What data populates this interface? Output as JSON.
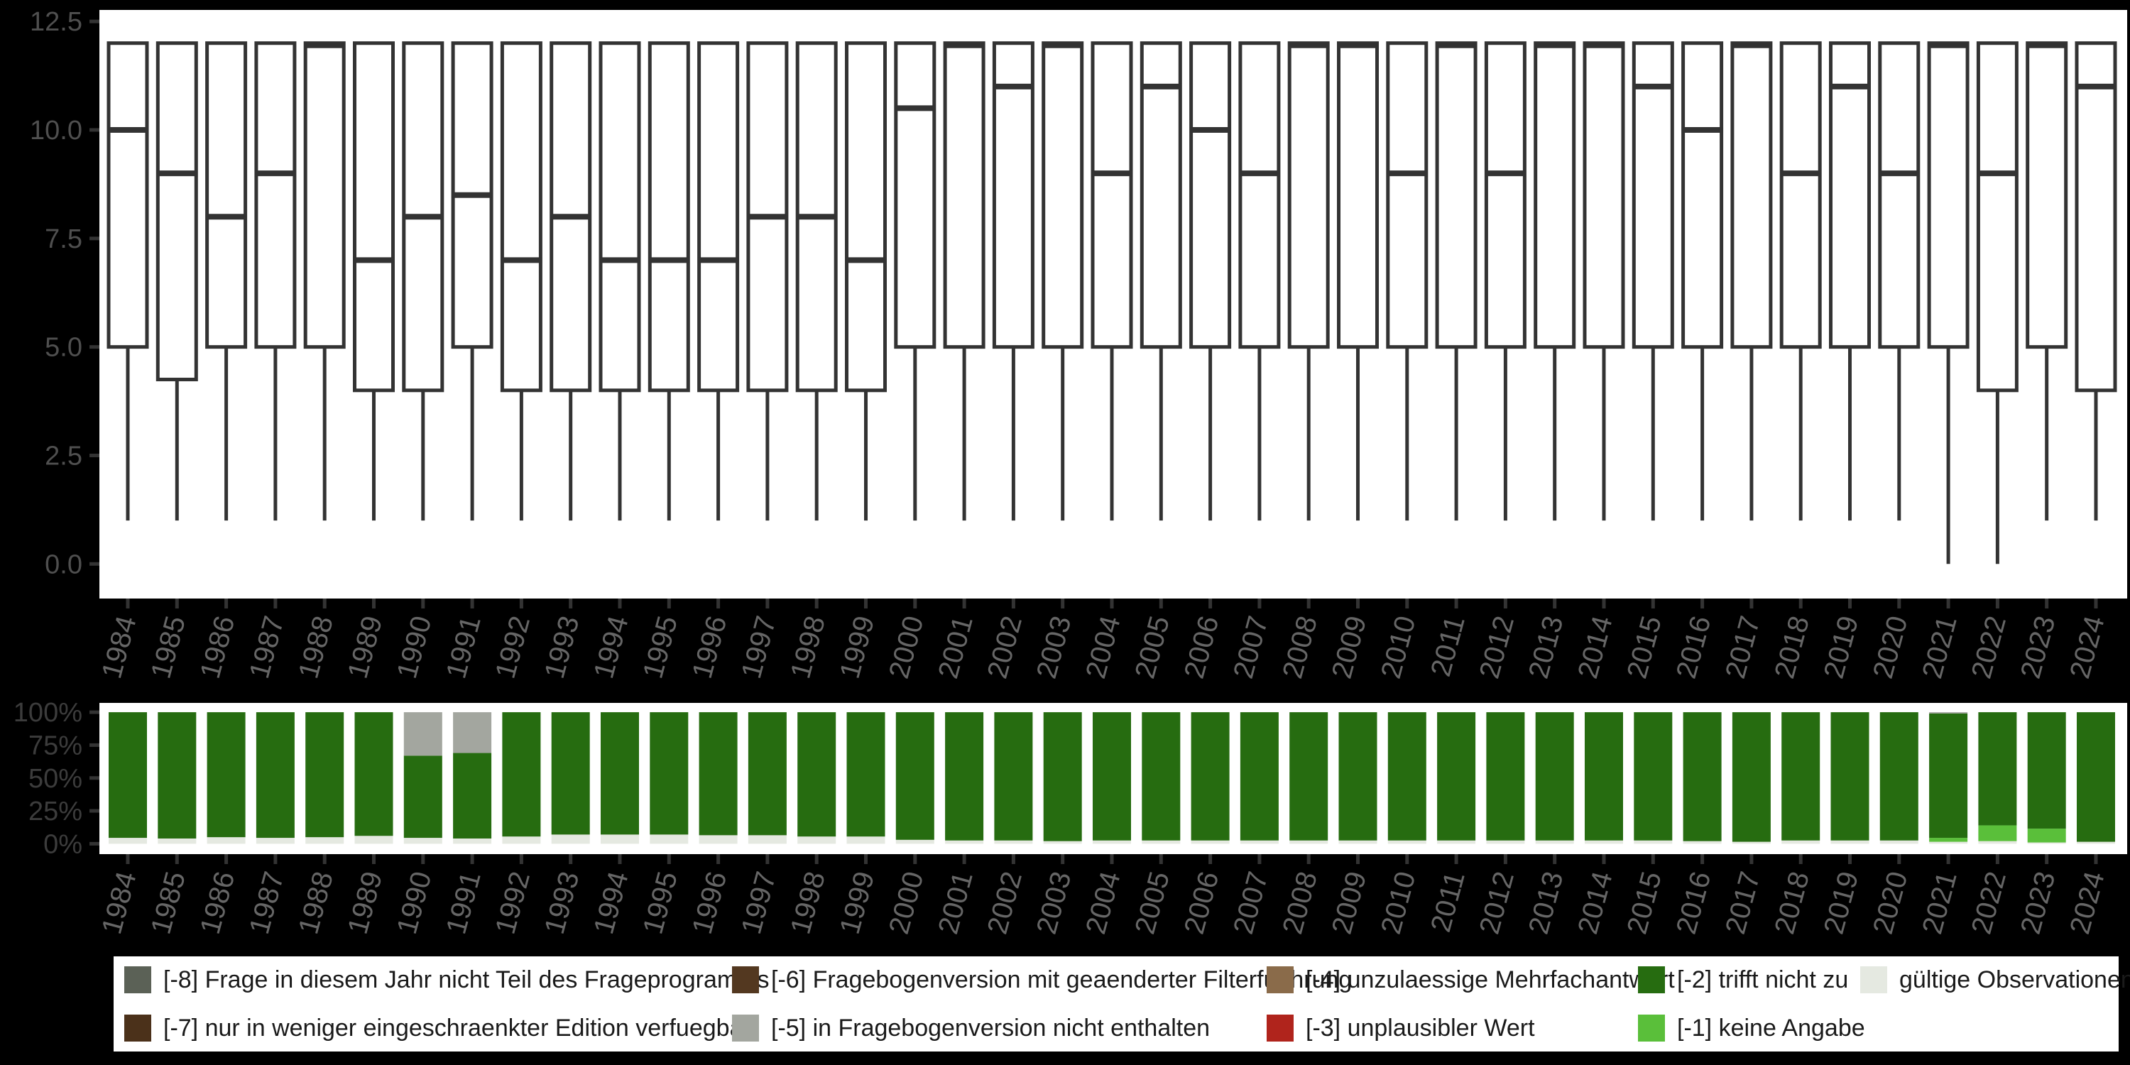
{
  "page": {
    "background": "#000000",
    "panel_background": "#ffffff",
    "box_stroke": "#333333",
    "tick_color": "#333333",
    "axis_label_color_top": "#4f4f4f",
    "axis_label_color_bottom": "#3c3c3c",
    "year_label_color": "#666666"
  },
  "chart_data": [
    {
      "type": "boxplot",
      "title": "",
      "xlabel": "",
      "ylabel": "",
      "ylim": [
        -0.8,
        12.77
      ],
      "yticks": [
        12.5,
        10.0,
        7.5,
        5.0,
        2.5,
        0.0
      ],
      "ytick_labels": [
        "12.5",
        "10.0",
        "7.5",
        "5.0",
        "2.5",
        "0.0"
      ],
      "grid": false,
      "categories": [
        1984,
        1985,
        1986,
        1987,
        1988,
        1989,
        1990,
        1991,
        1992,
        1993,
        1994,
        1995,
        1996,
        1997,
        1998,
        1999,
        2000,
        2001,
        2002,
        2003,
        2004,
        2005,
        2006,
        2007,
        2008,
        2009,
        2010,
        2011,
        2012,
        2013,
        2014,
        2015,
        2016,
        2017,
        2018,
        2019,
        2020,
        2021,
        2022,
        2023,
        2024
      ],
      "median": [
        10,
        9,
        8,
        9,
        12,
        7,
        8,
        8.5,
        7,
        8,
        7,
        7,
        7,
        8,
        8,
        7,
        10.5,
        12,
        11,
        12,
        9,
        11,
        10,
        9,
        12,
        12,
        9,
        12,
        9,
        12,
        12,
        11,
        10,
        12,
        9,
        11,
        9,
        12,
        9,
        12,
        11
      ],
      "q1": [
        5,
        4.25,
        5,
        5,
        5,
        4,
        4,
        5,
        4,
        4,
        4,
        4,
        4,
        4,
        4,
        4,
        5,
        5,
        5,
        5,
        5,
        5,
        5,
        5,
        5,
        5,
        5,
        5,
        5,
        5,
        5,
        5,
        5,
        5,
        5,
        5,
        5,
        5,
        4,
        5,
        4
      ],
      "q3": [
        12,
        12,
        12,
        12,
        12,
        12,
        12,
        12,
        12,
        12,
        12,
        12,
        12,
        12,
        12,
        12,
        12,
        12,
        12,
        12,
        12,
        12,
        12,
        12,
        12,
        12,
        12,
        12,
        12,
        12,
        12,
        12,
        12,
        12,
        12,
        12,
        12,
        12,
        12,
        12,
        12
      ],
      "whisker_low": [
        1,
        1,
        1,
        1,
        1,
        1,
        1,
        1,
        1,
        1,
        1,
        1,
        1,
        1,
        1,
        1,
        1,
        1,
        1,
        1,
        1,
        1,
        1,
        1,
        1,
        1,
        1,
        1,
        1,
        1,
        1,
        1,
        1,
        1,
        1,
        1,
        1,
        0,
        0,
        1,
        1
      ],
      "whisker_high": [
        12,
        12,
        12,
        12,
        12,
        12,
        12,
        12,
        12,
        12,
        12,
        12,
        12,
        12,
        12,
        12,
        12,
        12,
        12,
        12,
        12,
        12,
        12,
        12,
        12,
        12,
        12,
        12,
        12,
        12,
        12,
        12,
        12,
        12,
        12,
        12,
        12,
        12,
        12,
        12,
        12
      ]
    },
    {
      "type": "bar",
      "subtype": "stacked-percent",
      "title": "",
      "xlabel": "",
      "ylabel": "",
      "yticks": [
        0,
        25,
        50,
        75,
        100
      ],
      "ytick_labels": [
        "0%",
        "25%",
        "50%",
        "75%",
        "100%"
      ],
      "categories": [
        1984,
        1985,
        1986,
        1987,
        1988,
        1989,
        1990,
        1991,
        1992,
        1993,
        1994,
        1995,
        1996,
        1997,
        1998,
        1999,
        2000,
        2001,
        2002,
        2003,
        2004,
        2005,
        2006,
        2007,
        2008,
        2009,
        2010,
        2011,
        2012,
        2013,
        2014,
        2015,
        2016,
        2017,
        2018,
        2019,
        2020,
        2021,
        2022,
        2023,
        2024
      ],
      "series": [
        {
          "name": "gueltige Observationen",
          "color": "#e5e9e1",
          "values": [
            4.5,
            4,
            5,
            4.5,
            5,
            6,
            4.5,
            4,
            5.5,
            7,
            7,
            7,
            6.5,
            6.5,
            5.5,
            5.5,
            3,
            2.5,
            2.5,
            2,
            2.5,
            2.5,
            2.5,
            2.5,
            2.5,
            2.5,
            2.5,
            2.5,
            2.5,
            2.5,
            2.5,
            2.5,
            2,
            1.5,
            2.5,
            2.5,
            2.5,
            1.5,
            2,
            1,
            1.5
          ]
        },
        {
          "name": "[-1] keine Angabe",
          "color": "#5abf3a",
          "values": [
            0,
            0,
            0,
            0,
            0,
            0,
            0,
            0,
            0,
            0,
            0,
            0,
            0,
            0,
            0,
            0,
            0,
            0,
            0,
            0,
            0,
            0,
            0,
            0,
            0,
            0,
            0,
            0,
            0,
            0,
            0,
            0,
            0,
            0,
            0,
            0,
            0,
            3,
            12,
            10.5,
            0
          ]
        },
        {
          "name": "[-2] trifft nicht zu",
          "color": "#266c10",
          "values": [
            95.5,
            96,
            95,
            95.5,
            95,
            94,
            62.5,
            65,
            94.5,
            93,
            93,
            93,
            93.5,
            93.5,
            94.5,
            94.5,
            97,
            97.5,
            97.5,
            98,
            97.5,
            97.5,
            97.5,
            97.5,
            97.5,
            97.5,
            97.5,
            97.5,
            97.5,
            97.5,
            97.5,
            97.5,
            98,
            98.5,
            97.5,
            97.5,
            97.5,
            94.5,
            86,
            88.5,
            98.5
          ]
        },
        {
          "name": "[-5] in Fragebogenversion nicht enthalten",
          "color": "#a3a69f",
          "values": [
            0,
            0,
            0,
            0,
            0,
            0,
            33,
            31,
            0,
            0,
            0,
            0,
            0,
            0,
            0,
            0,
            0,
            0,
            0,
            0,
            0,
            0,
            0,
            0,
            0,
            0,
            0,
            0,
            0,
            0,
            0,
            0,
            0,
            0,
            0,
            0,
            0,
            1,
            0,
            0,
            0
          ]
        }
      ]
    }
  ],
  "legend": {
    "items": [
      {
        "code": "-8",
        "label": "[-8] Frage in diesem Jahr nicht Teil des Frageprogramms",
        "color": "#5b6156"
      },
      {
        "code": "-7",
        "label": "[-7] nur in weniger eingeschraenkter Edition verfuegbar",
        "color": "#4b311a"
      },
      {
        "code": "-6",
        "label": "[-6] Fragebogenversion mit geaenderter Filterfuehrung",
        "color": "#533820"
      },
      {
        "code": "-5",
        "label": "[-5] in Fragebogenversion nicht enthalten",
        "color": "#a3a69f"
      },
      {
        "code": "-4",
        "label": "[-4] unzulaessige Mehrfachantwort",
        "color": "#8a6b4a"
      },
      {
        "code": "-3",
        "label": "[-3] unplausibler Wert",
        "color": "#b0241c"
      },
      {
        "code": "-2",
        "label": "[-2] trifft nicht zu",
        "color": "#266c10"
      },
      {
        "code": "-1",
        "label": "[-1] keine Angabe",
        "color": "#5abf3a"
      },
      {
        "code": "valid",
        "label": "gültige Observationen",
        "color": "#e5e9e1"
      }
    ],
    "column_layout": [
      [
        0,
        1
      ],
      [
        2,
        3
      ],
      [
        4,
        5
      ],
      [
        6,
        7
      ],
      [
        8
      ]
    ],
    "column_lefts": [
      15,
      871,
      1624,
      2147,
      2460
    ],
    "row_tops": [
      14,
      82
    ]
  }
}
